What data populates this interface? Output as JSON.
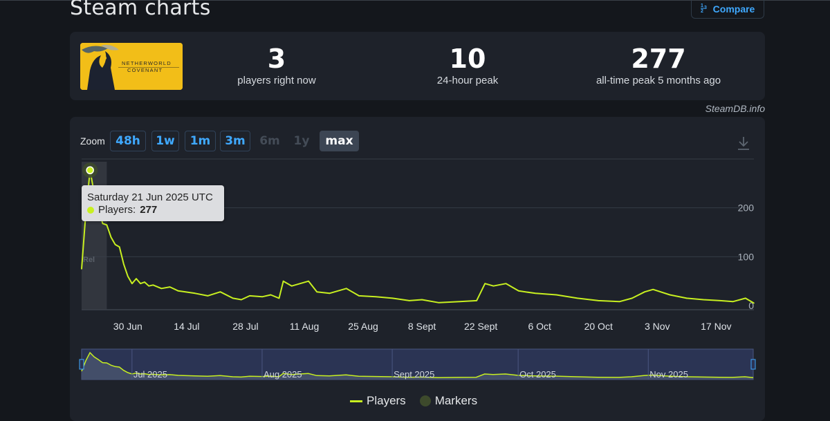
{
  "header": {
    "title": "Steam charts",
    "compare_label": "Compare",
    "compare_icon_text": "1 2 3"
  },
  "game": {
    "logo_text_line1": "NETHERWORLD",
    "logo_text_line2": "COVENANT",
    "logo_colors": {
      "background": "#f2be18",
      "figure": "#1c2230"
    }
  },
  "stats": [
    {
      "value": "3",
      "label": "players right now"
    },
    {
      "value": "10",
      "label": "24-hour peak"
    },
    {
      "value": "277",
      "label": "all-time peak 5 months ago"
    }
  ],
  "credit": "SteamDB.info",
  "zoom": {
    "label": "Zoom",
    "buttons": [
      {
        "label": "48h",
        "state": "enabled"
      },
      {
        "label": "1w",
        "state": "enabled"
      },
      {
        "label": "1m",
        "state": "enabled"
      },
      {
        "label": "3m",
        "state": "enabled"
      },
      {
        "label": "6m",
        "state": "disabled"
      },
      {
        "label": "1y",
        "state": "disabled"
      },
      {
        "label": "max",
        "state": "active"
      }
    ]
  },
  "tooltip": {
    "date": "Saturday 21 Jun 2025 UTC",
    "series_label": "Players:",
    "value": "277"
  },
  "marker_label": "Rel",
  "legend": {
    "players": "Players",
    "markers": "Markers"
  },
  "navigator": {
    "labels": [
      "Jul 2025",
      "Aug 2025",
      "Sept 2025",
      "Oct 2025",
      "Nov 2025"
    ]
  },
  "colors": {
    "series": "#c8f020",
    "accent": "#3fa9ff",
    "card_bg": "#1e222a",
    "page_bg": "#14171c"
  },
  "chart_data": {
    "type": "line",
    "title": "",
    "xlabel": "",
    "ylabel": "",
    "ylim": [
      0,
      300
    ],
    "y_ticks": [
      "0",
      "100",
      "200"
    ],
    "x_ticks": [
      "30 Jun",
      "14 Jul",
      "28 Jul",
      "11 Aug",
      "25 Aug",
      "8 Sept",
      "22 Sept",
      "6 Oct",
      "20 Oct",
      "3 Nov",
      "17 Nov"
    ],
    "x_range": [
      "2025-06-19",
      "2025-11-26"
    ],
    "grid": true,
    "legend_position": "bottom-center",
    "series": [
      {
        "name": "Players",
        "points": [
          [
            "2025-06-19",
            75
          ],
          [
            "2025-06-20",
            190
          ],
          [
            "2025-06-21",
            277
          ],
          [
            "2025-06-22",
            230
          ],
          [
            "2025-06-23",
            200
          ],
          [
            "2025-06-24",
            168
          ],
          [
            "2025-06-25",
            165
          ],
          [
            "2025-06-26",
            140
          ],
          [
            "2025-06-27",
            125
          ],
          [
            "2025-06-28",
            120
          ],
          [
            "2025-06-29",
            85
          ],
          [
            "2025-06-30",
            60
          ],
          [
            "2025-07-01",
            45
          ],
          [
            "2025-07-02",
            55
          ],
          [
            "2025-07-03",
            45
          ],
          [
            "2025-07-04",
            48
          ],
          [
            "2025-07-05",
            40
          ],
          [
            "2025-07-06",
            42
          ],
          [
            "2025-07-08",
            35
          ],
          [
            "2025-07-10",
            38
          ],
          [
            "2025-07-12",
            30
          ],
          [
            "2025-07-16",
            25
          ],
          [
            "2025-07-19",
            20
          ],
          [
            "2025-07-22",
            28
          ],
          [
            "2025-07-25",
            15
          ],
          [
            "2025-07-27",
            12
          ],
          [
            "2025-07-29",
            20
          ],
          [
            "2025-08-01",
            18
          ],
          [
            "2025-08-03",
            22
          ],
          [
            "2025-08-05",
            15
          ],
          [
            "2025-08-06",
            50
          ],
          [
            "2025-08-08",
            40
          ],
          [
            "2025-08-10",
            45
          ],
          [
            "2025-08-12",
            50
          ],
          [
            "2025-08-14",
            28
          ],
          [
            "2025-08-17",
            25
          ],
          [
            "2025-08-19",
            30
          ],
          [
            "2025-08-21",
            35
          ],
          [
            "2025-08-24",
            20
          ],
          [
            "2025-08-28",
            18
          ],
          [
            "2025-09-01",
            15
          ],
          [
            "2025-09-05",
            10
          ],
          [
            "2025-09-08",
            12
          ],
          [
            "2025-09-12",
            6
          ],
          [
            "2025-09-17",
            8
          ],
          [
            "2025-09-21",
            10
          ],
          [
            "2025-09-23",
            45
          ],
          [
            "2025-09-25",
            40
          ],
          [
            "2025-09-28",
            45
          ],
          [
            "2025-10-01",
            30
          ],
          [
            "2025-10-05",
            25
          ],
          [
            "2025-10-10",
            22
          ],
          [
            "2025-10-15",
            15
          ],
          [
            "2025-10-20",
            10
          ],
          [
            "2025-10-25",
            8
          ],
          [
            "2025-10-28",
            15
          ],
          [
            "2025-10-31",
            28
          ],
          [
            "2025-11-02",
            33
          ],
          [
            "2025-11-06",
            22
          ],
          [
            "2025-11-10",
            15
          ],
          [
            "2025-11-14",
            12
          ],
          [
            "2025-11-18",
            10
          ],
          [
            "2025-11-21",
            8
          ],
          [
            "2025-11-24",
            15
          ],
          [
            "2025-11-26",
            5
          ]
        ]
      }
    ],
    "markers": [
      {
        "date": "2025-06-21",
        "label": "Rel",
        "range": [
          "2025-06-19",
          "2025-06-25"
        ]
      }
    ]
  }
}
